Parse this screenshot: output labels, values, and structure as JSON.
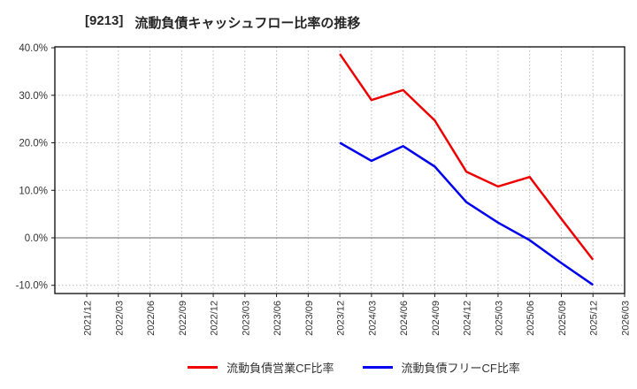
{
  "title": {
    "code": "[9213]",
    "text": "流動負債キャッシュフロー比率の推移"
  },
  "chart_data": {
    "type": "line",
    "title": "[9213] 流動負債キャッシュフロー比率の推移",
    "xlabel": "",
    "ylabel": "",
    "x_categories": [
      "2021/12",
      "2022/03",
      "2022/06",
      "2022/09",
      "2022/12",
      "2023/03",
      "2023/06",
      "2023/09",
      "2023/12",
      "2024/03",
      "2024/06",
      "2024/09",
      "2024/12",
      "2025/03",
      "2025/06",
      "2025/09",
      "2025/12",
      "2026/03"
    ],
    "y_ticks": [
      {
        "value": 40,
        "label": "40.0%"
      },
      {
        "value": 30,
        "label": "30.0%"
      },
      {
        "value": 20,
        "label": "20.0%"
      },
      {
        "value": 10,
        "label": "10.0%"
      },
      {
        "value": 0,
        "label": "0.0%"
      },
      {
        "value": -10,
        "label": "-10.0%"
      }
    ],
    "ylim": [
      -11.7,
      40.2
    ],
    "grid": true,
    "zero_line": true,
    "legend_position": "bottom",
    "series": [
      {
        "name": "流動負債営業CF比率",
        "color": "#ee0000",
        "start_index": 8,
        "x": [
          "2023/12",
          "2024/03",
          "2024/06",
          "2024/09",
          "2024/12",
          "2025/03",
          "2025/06",
          "2025/09",
          "2025/12"
        ],
        "values": [
          38.7,
          29.0,
          31.1,
          24.7,
          13.9,
          10.8,
          12.8,
          4.0,
          -4.6
        ]
      },
      {
        "name": "流動負債フリーCF比率",
        "color": "#0000ee",
        "start_index": 8,
        "x": [
          "2023/12",
          "2024/03",
          "2024/06",
          "2024/09",
          "2024/12",
          "2025/03",
          "2025/06",
          "2025/09",
          "2025/12"
        ],
        "values": [
          20.0,
          16.2,
          19.3,
          15.0,
          7.5,
          3.2,
          -0.5,
          -5.3,
          -9.9
        ]
      }
    ],
    "colors": {
      "grid": "#b8b8b8",
      "zero_line": "#808080",
      "border": "#1a1a1a",
      "tick_text": "#333333",
      "title_text": "#262626"
    }
  }
}
